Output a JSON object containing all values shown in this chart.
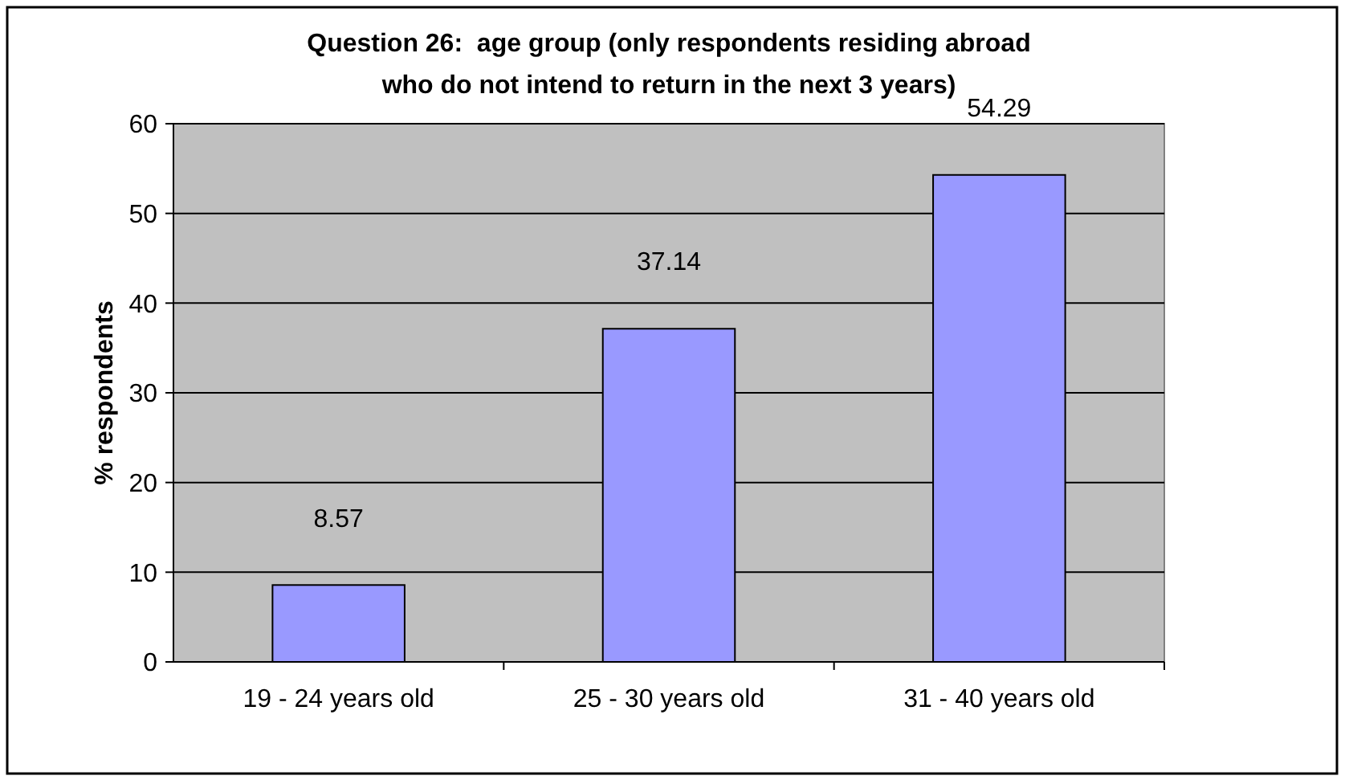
{
  "chart_data": {
    "type": "bar",
    "title": "Question 26:  age group (only respondents residing abroad\nwho do not intend to return in the next 3 years)",
    "ylabel": "% respondents",
    "categories": [
      "19 - 24 years old",
      "25 - 30 years old",
      "31 - 40 years old"
    ],
    "values": [
      8.57,
      37.14,
      54.29
    ],
    "color": "#9999ff",
    "data_labels": true,
    "ylim": [
      0,
      60
    ],
    "yticks": [
      0,
      10,
      20,
      30,
      40,
      50,
      60
    ],
    "grid": "y"
  }
}
